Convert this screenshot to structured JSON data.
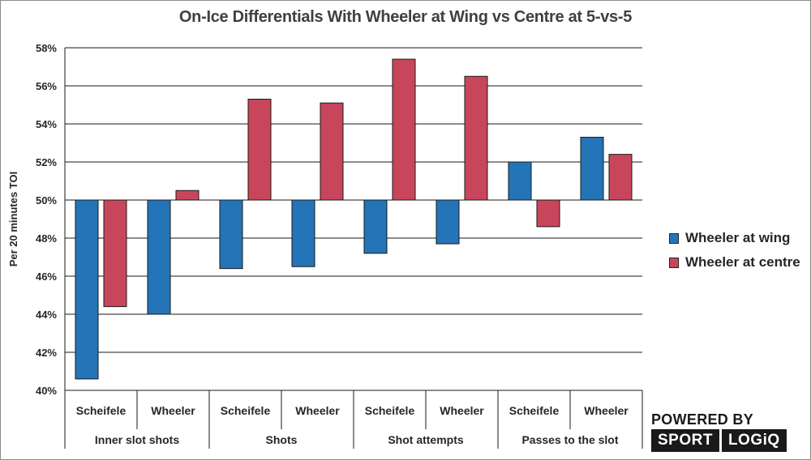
{
  "chart_data": {
    "type": "bar",
    "title": "On-Ice Differentials With Wheeler at Wing vs Centre at 5-vs-5",
    "ylabel": "Per 20 minutes TOI",
    "xlabel": "",
    "ylim": [
      40,
      58
    ],
    "baseline": 50,
    "yticks": [
      40,
      42,
      44,
      46,
      48,
      50,
      52,
      54,
      56,
      58
    ],
    "ytick_labels": [
      "40%",
      "42%",
      "44%",
      "46%",
      "48%",
      "50%",
      "52%",
      "54%",
      "56%",
      "58%"
    ],
    "groups": [
      "Inner slot shots",
      "Shots",
      "Shot attempts",
      "Passes to the slot"
    ],
    "categories": [
      "Scheifele",
      "Wheeler",
      "Scheifele",
      "Wheeler",
      "Scheifele",
      "Wheeler",
      "Scheifele",
      "Wheeler"
    ],
    "series": [
      {
        "name": "Wheeler at wing",
        "color": "#2474b8",
        "values": [
          40.6,
          44.0,
          46.4,
          46.5,
          47.2,
          47.7,
          52.0,
          53.3
        ]
      },
      {
        "name": "Wheeler at centre",
        "color": "#c8465b",
        "values": [
          44.4,
          50.5,
          55.3,
          55.1,
          57.4,
          56.5,
          48.6,
          52.4
        ]
      }
    ],
    "grid": true,
    "legend": "right"
  },
  "branding": {
    "line1": "POWERED BY",
    "word1": "SPORT",
    "word2": "LOGiQ"
  }
}
